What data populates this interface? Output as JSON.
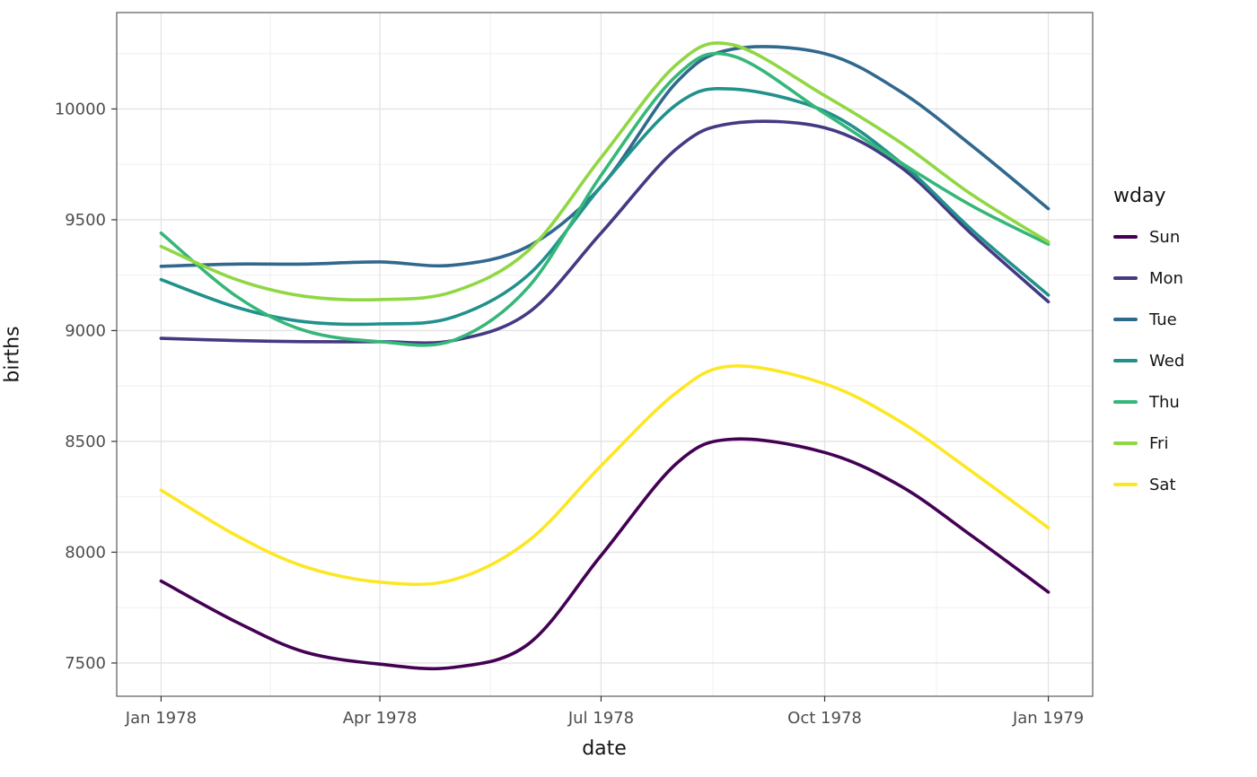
{
  "chart_data": {
    "type": "line",
    "title": "",
    "xlabel": "date",
    "ylabel": "births",
    "legend_title": "wday",
    "legend_position": "right",
    "grid": true,
    "x_unit": "day_of_year_from_1978-01-01",
    "x": [
      0,
      31,
      59,
      90,
      120,
      151,
      181,
      212,
      235,
      273,
      304,
      334,
      365
    ],
    "x_tick_days": [
      0,
      90,
      181,
      273,
      365
    ],
    "x_tick_labels": [
      "Jan 1978",
      "Apr 1978",
      "Jul 1978",
      "Oct 1978",
      "Jan 1979"
    ],
    "x_minor_days": [
      45,
      135.5,
      227,
      319
    ],
    "y_ticks": [
      7500,
      8000,
      8500,
      9000,
      9500,
      10000
    ],
    "y_minor": [
      7750,
      8250,
      8750,
      9250,
      9750,
      10250
    ],
    "xlim_days": [
      -18.25,
      383.25
    ],
    "ylim": [
      7350,
      10435
    ],
    "panel": {
      "background": "#ffffff",
      "border_color": "#595959",
      "grid_major_color": "#e3e3e3",
      "grid_minor_color": "#f0f0f0",
      "tick_color": "#333333",
      "tick_label_color": "#4d4d4d"
    },
    "series": [
      {
        "name": "Sun",
        "color": "#440154",
        "values": [
          7870,
          7685,
          7550,
          7495,
          7480,
          7585,
          7985,
          8400,
          8510,
          8450,
          8300,
          8070,
          7820
        ]
      },
      {
        "name": "Mon",
        "color": "#443983",
        "values": [
          8965,
          8955,
          8950,
          8950,
          8955,
          9080,
          9440,
          9820,
          9935,
          9915,
          9740,
          9430,
          9130
        ]
      },
      {
        "name": "Tue",
        "color": "#31688e",
        "values": [
          9290,
          9300,
          9300,
          9310,
          9295,
          9380,
          9650,
          10120,
          10270,
          10250,
          10080,
          9830,
          9550
        ]
      },
      {
        "name": "Wed",
        "color": "#21918c",
        "values": [
          9230,
          9105,
          9040,
          9030,
          9060,
          9250,
          9650,
          10020,
          10090,
          9990,
          9760,
          9450,
          9160
        ]
      },
      {
        "name": "Thu",
        "color": "#35b779",
        "values": [
          9440,
          9155,
          9000,
          8950,
          8955,
          9195,
          9700,
          10150,
          10240,
          9980,
          9760,
          9560,
          9390
        ]
      },
      {
        "name": "Fri",
        "color": "#90d743",
        "values": [
          9380,
          9230,
          9155,
          9140,
          9175,
          9360,
          9780,
          10200,
          10290,
          10060,
          9850,
          9610,
          9400
        ]
      },
      {
        "name": "Sat",
        "color": "#fde725",
        "values": [
          8280,
          8075,
          7935,
          7865,
          7875,
          8050,
          8390,
          8720,
          8840,
          8760,
          8590,
          8360,
          8110
        ]
      }
    ]
  }
}
